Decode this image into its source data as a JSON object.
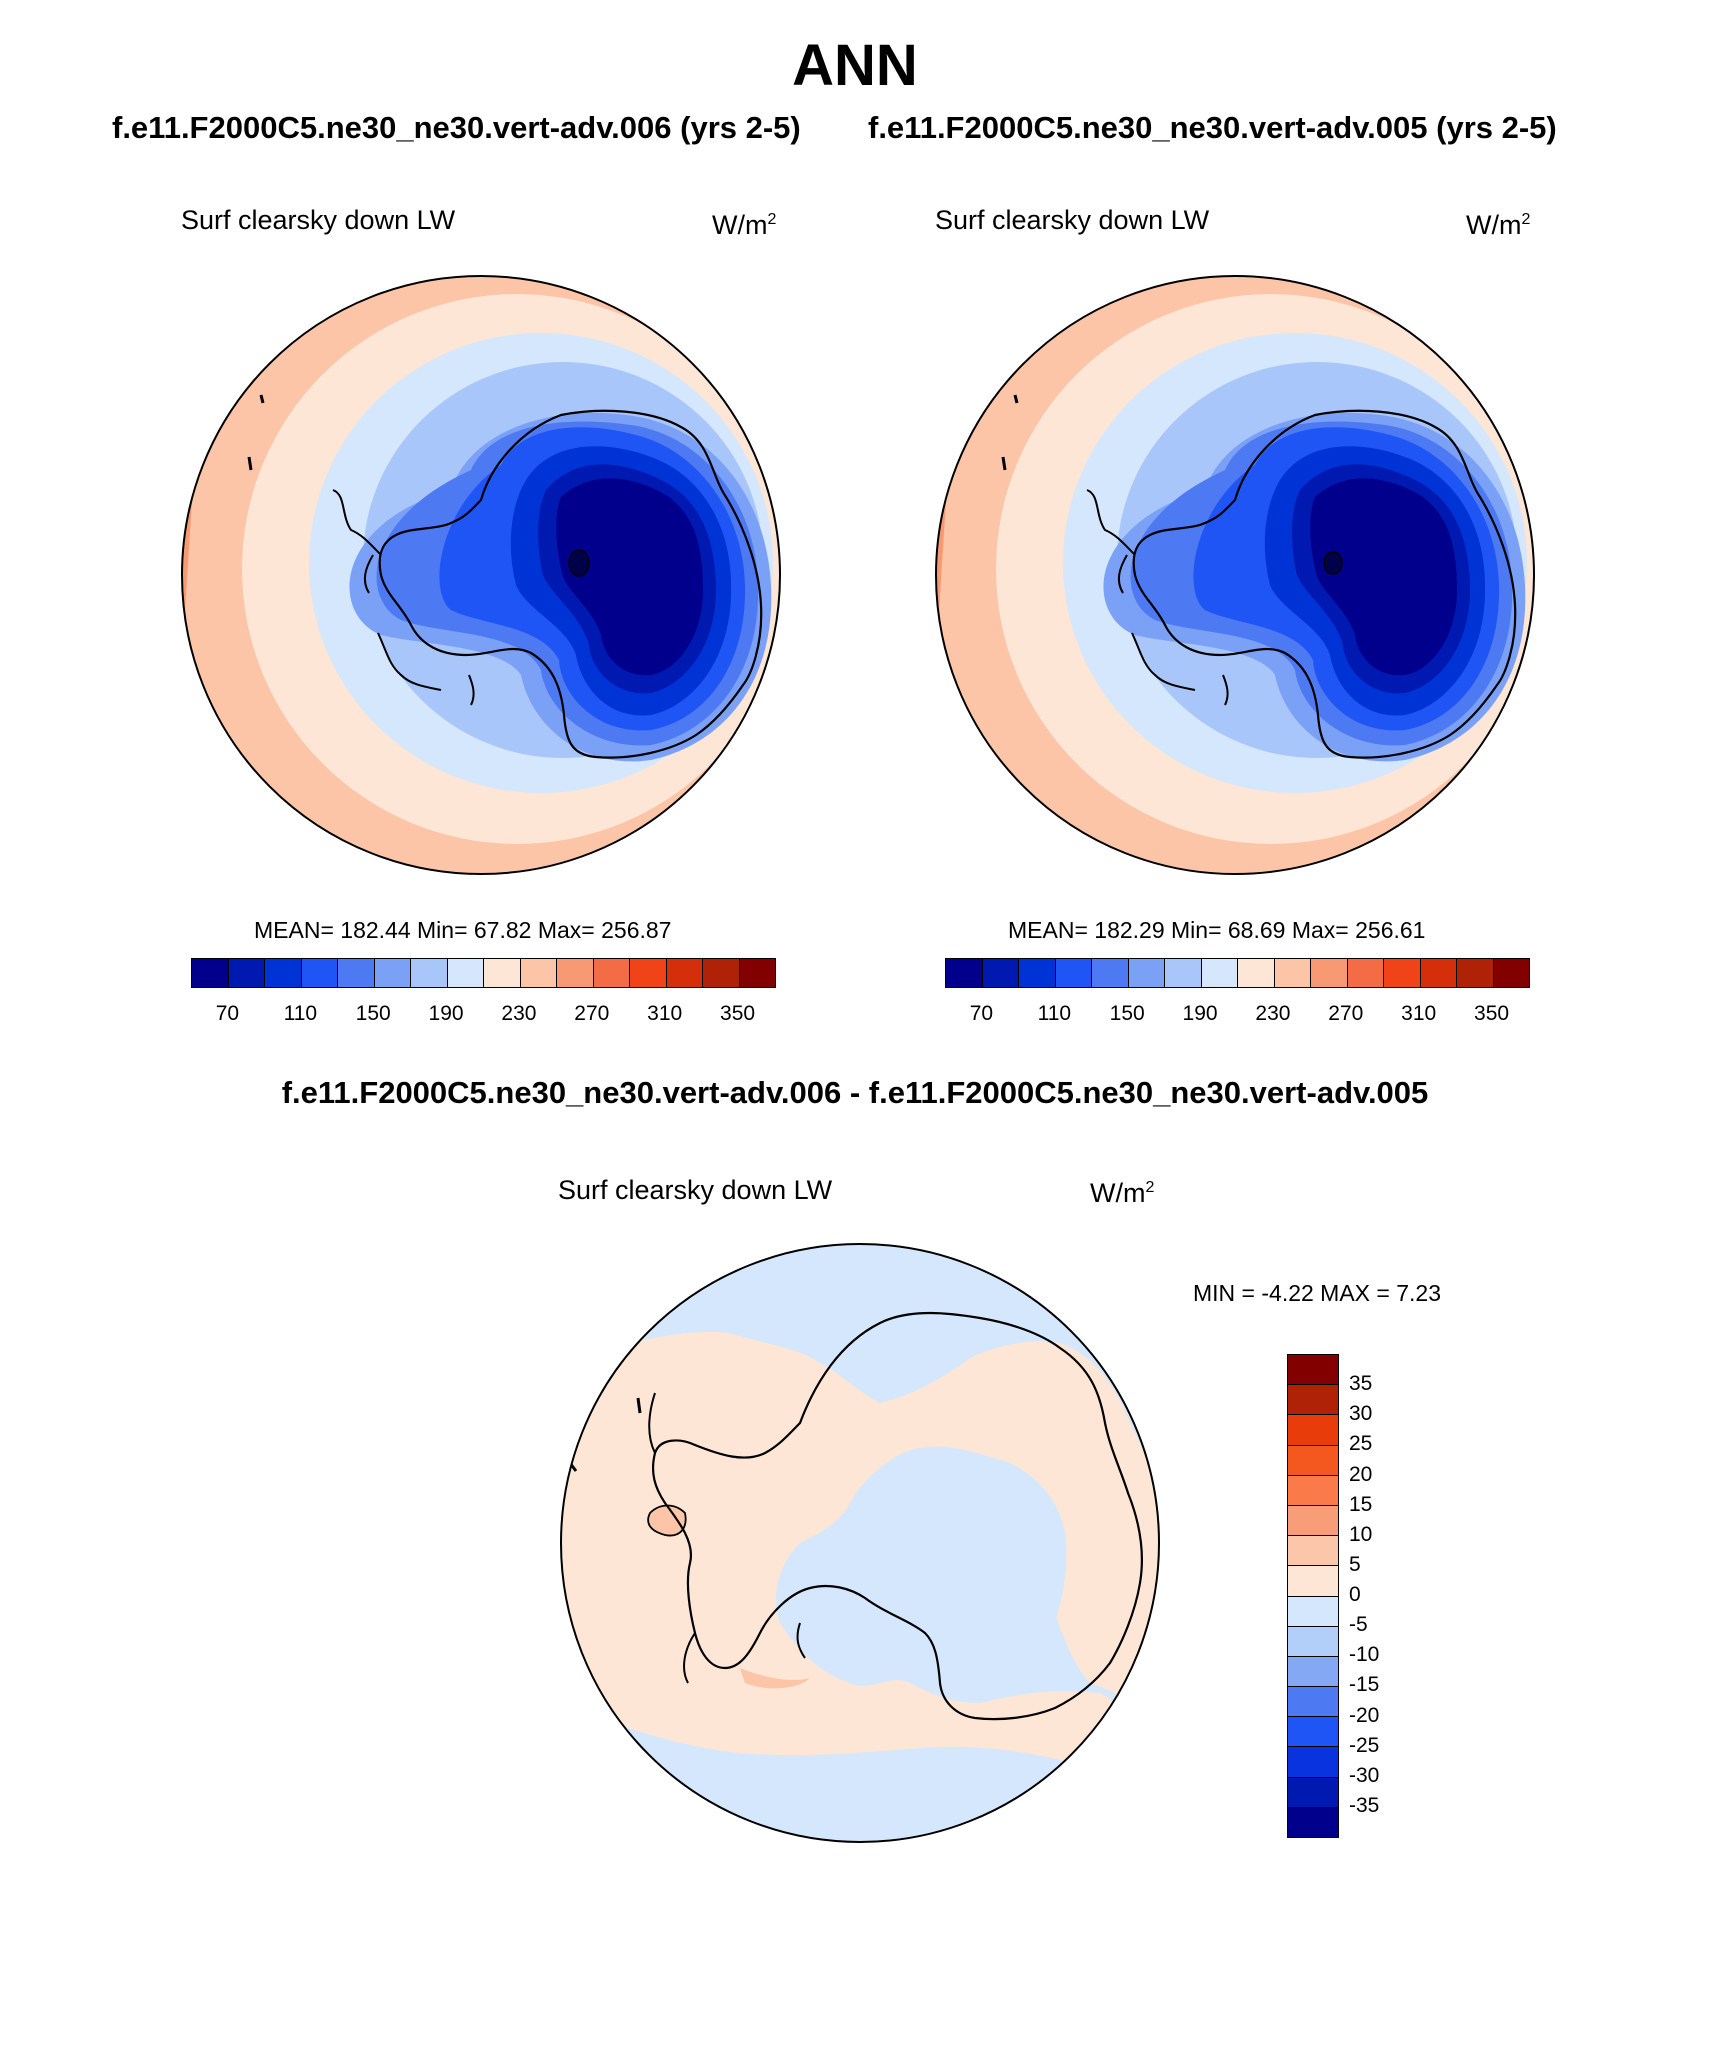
{
  "title": "ANN",
  "case_titles": {
    "left": "f.e11.F2000C5.ne30_ne30.vert-adv.006 (yrs 2-5)",
    "right": "f.e11.F2000C5.ne30_ne30.vert-adv.005 (yrs 2-5)"
  },
  "diff_title": "f.e11.F2000C5.ne30_ne30.vert-adv.006 - f.e11.F2000C5.ne30_ne30.vert-adv.005",
  "panels": {
    "left": {
      "label": "Surf clearsky down LW",
      "units_base": "W/m",
      "units_exp": "2",
      "stats": "MEAN= 182.44  Min=  67.82  Max= 256.87"
    },
    "right": {
      "label": "Surf clearsky down LW",
      "units_base": "W/m",
      "units_exp": "2",
      "stats": "MEAN= 182.29  Min=  68.69  Max= 256.61"
    },
    "diff": {
      "label": "Surf clearsky down LW",
      "units_base": "W/m",
      "units_exp": "2",
      "stats": "MIN =  -4.22 MAX =   7.23"
    }
  },
  "colorbar_abs": {
    "colors": [
      "#00008c",
      "#0019b0",
      "#0033d6",
      "#1f55f5",
      "#4d7af2",
      "#7aa1f5",
      "#a8c6fa",
      "#d4e7fc",
      "#fde6d6",
      "#fcc5a8",
      "#f79a74",
      "#f46c45",
      "#f04418",
      "#d42f0a",
      "#b02208",
      "#820000"
    ],
    "tick_labels": [
      "70",
      "110",
      "150",
      "190",
      "230",
      "270",
      "310",
      "350"
    ]
  },
  "colorbar_diff": {
    "colors": [
      "#820000",
      "#b02208",
      "#e83d0b",
      "#f5581f",
      "#fa7a4a",
      "#f79e78",
      "#fcc6aa",
      "#fde6d6",
      "#d4e7fc",
      "#b2cffa",
      "#85a8f5",
      "#4d7af2",
      "#1f55f5",
      "#0a33e0",
      "#0019b0",
      "#00008c"
    ],
    "tick_labels": [
      "35",
      "30",
      "25",
      "20",
      "15",
      "10",
      "5",
      "0",
      "-5",
      "-10",
      "-15",
      "-20",
      "-25",
      "-30",
      "-35"
    ]
  }
}
